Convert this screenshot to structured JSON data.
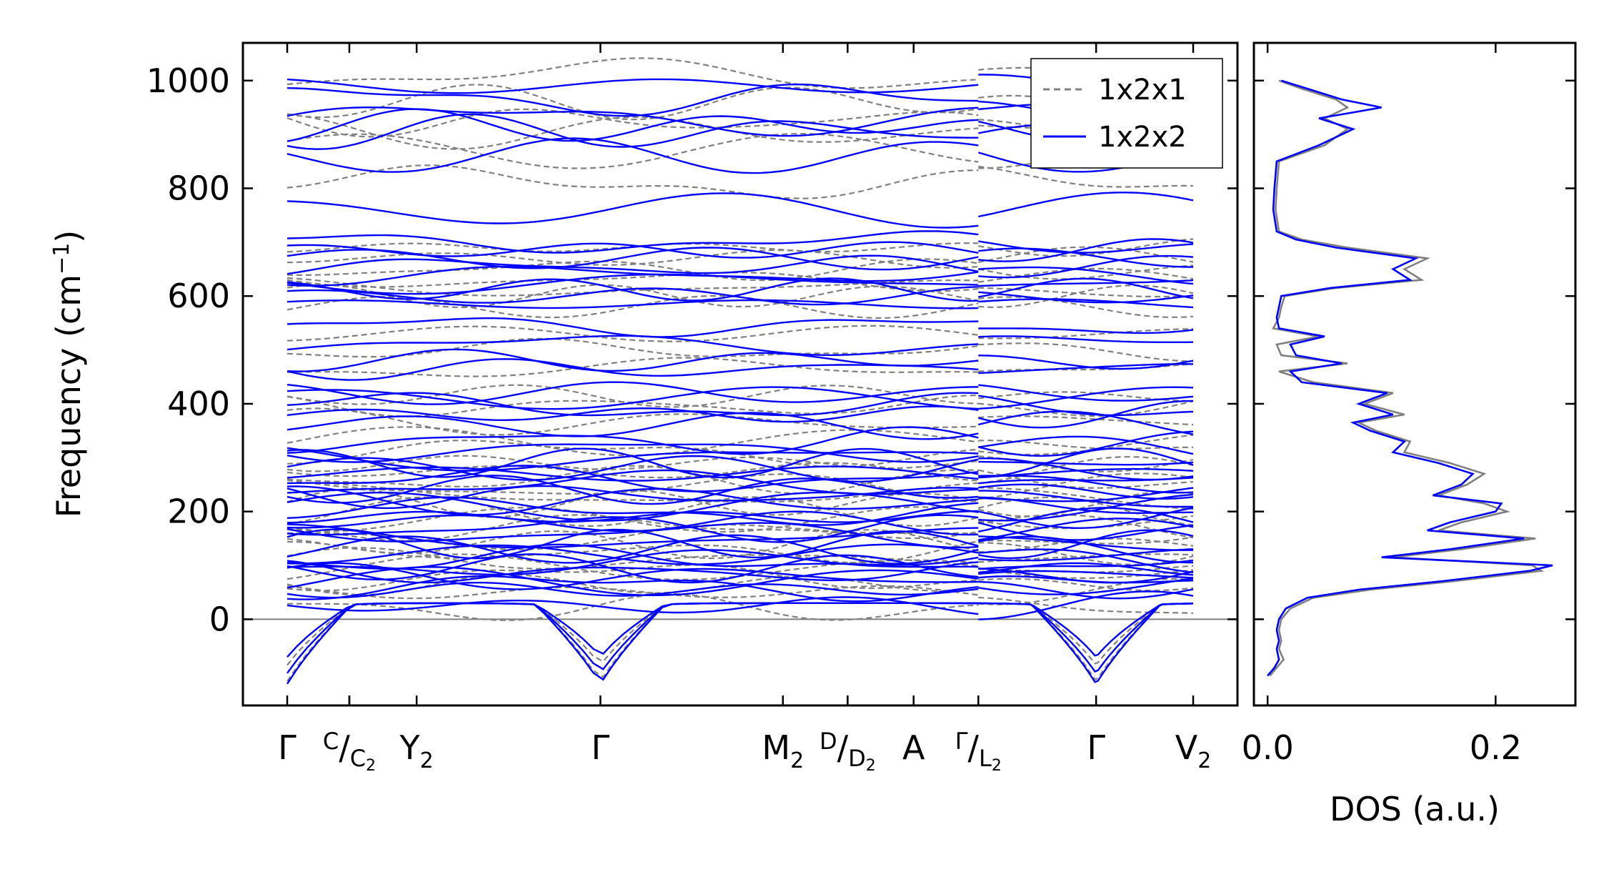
{
  "chart_data": [
    {
      "type": "line",
      "title": "",
      "xlabel": "",
      "ylabel": "Frequency (cm",
      "ylabel_sup": "−1",
      "ylabel_end": ")",
      "ylim": [
        -160,
        1070
      ],
      "yticks": [
        0,
        200,
        400,
        600,
        800,
        1000
      ],
      "grid": false,
      "legend_placement": "top-right",
      "kpath": [
        {
          "label": "Γ",
          "pos": 0.0
        },
        {
          "pos": 0.48
        },
        {
          "label": "Y",
          "sub": "2",
          "pos": 1.0
        },
        {
          "label": "Γ",
          "pos": 2.42
        },
        {
          "label": "M",
          "sub": "2",
          "pos": 3.83
        },
        {
          "pos": 4.33
        },
        {
          "label": "A",
          "pos": 4.84
        },
        {
          "label": "Γ",
          "pos": 6.25
        },
        {
          "label": "V",
          "sub": "2",
          "pos": 7.0
        }
      ],
      "kpath_split_labels": [
        {
          "sup": "C",
          "sub_main": "C",
          "sub_sub": "2",
          "pos": 0.48
        },
        {
          "sup": "D",
          "sub_main": "D",
          "sub_sub": "2",
          "pos": 4.33
        },
        {
          "sup": "Γ",
          "sub_main": "L",
          "sub_sub": "2",
          "pos": 5.34
        }
      ],
      "discontinuity_pos": 5.34,
      "zero_line": 0,
      "series": [
        {
          "name": "1x2x1",
          "color": "#808080",
          "style": "dashed",
          "band_levels": [
            -85,
            -55,
            20,
            50,
            65,
            80,
            95,
            110,
            125,
            140,
            155,
            170,
            185,
            200,
            215,
            230,
            245,
            260,
            275,
            290,
            310,
            330,
            365,
            395,
            415,
            465,
            500,
            530,
            580,
            600,
            615,
            630,
            650,
            670,
            690,
            810,
            870,
            905,
            925,
            960,
            1010
          ]
        },
        {
          "name": "1x2x2",
          "color": "#0000ff",
          "style": "solid",
          "band_levels": [
            -90,
            -70,
            -40,
            25,
            55,
            60,
            70,
            78,
            86,
            95,
            103,
            112,
            120,
            130,
            140,
            150,
            160,
            170,
            180,
            190,
            200,
            210,
            220,
            230,
            240,
            250,
            260,
            270,
            280,
            290,
            300,
            315,
            330,
            360,
            380,
            395,
            410,
            420,
            465,
            480,
            510,
            545,
            585,
            600,
            612,
            625,
            640,
            655,
            670,
            685,
            700,
            760,
            860,
            905,
            915,
            930,
            965,
            990
          ]
        }
      ]
    },
    {
      "type": "line",
      "title": "",
      "xlabel": "DOS (a.u.)",
      "ylabel": "",
      "xlim": [
        -0.012,
        0.27
      ],
      "xticks": [
        0.0,
        0.2
      ],
      "xtick_labels": [
        "0.0",
        "0.2"
      ],
      "ylim": [
        -160,
        1070
      ],
      "grid": false,
      "series": [
        {
          "name": "1x2x1",
          "color": "#808080",
          "freq": [
            -105,
            -90,
            -75,
            -55,
            -40,
            -20,
            0,
            20,
            40,
            55,
            70,
            90,
            100,
            115,
            130,
            150,
            165,
            180,
            200,
            215,
            230,
            250,
            270,
            290,
            310,
            330,
            350,
            365,
            380,
            400,
            420,
            440,
            460,
            475,
            490,
            510,
            525,
            540,
            560,
            580,
            600,
            615,
            630,
            650,
            670,
            690,
            705,
            720,
            760,
            800,
            850,
            880,
            910,
            930,
            950,
            965,
            985,
            1000
          ],
          "dos": [
            0.002,
            0.008,
            0.014,
            0.01,
            0.012,
            0.01,
            0.012,
            0.02,
            0.04,
            0.09,
            0.16,
            0.24,
            0.232,
            0.11,
            0.17,
            0.235,
            0.15,
            0.17,
            0.21,
            0.19,
            0.15,
            0.175,
            0.19,
            0.16,
            0.12,
            0.125,
            0.095,
            0.08,
            0.12,
            0.085,
            0.11,
            0.04,
            0.01,
            0.07,
            0.012,
            0.008,
            0.045,
            0.005,
            0.01,
            0.012,
            0.015,
            0.06,
            0.135,
            0.12,
            0.14,
            0.07,
            0.03,
            0.01,
            0.007,
            0.008,
            0.01,
            0.05,
            0.07,
            0.05,
            0.07,
            0.06,
            0.03,
            0.01
          ]
        },
        {
          "name": "1x2x2",
          "color": "#0000ff",
          "freq": [
            -105,
            -90,
            -75,
            -55,
            -40,
            -20,
            0,
            20,
            40,
            55,
            70,
            90,
            100,
            115,
            130,
            150,
            165,
            180,
            200,
            215,
            230,
            250,
            270,
            290,
            310,
            330,
            350,
            365,
            380,
            400,
            420,
            440,
            460,
            475,
            490,
            510,
            525,
            540,
            560,
            580,
            600,
            615,
            630,
            650,
            670,
            690,
            705,
            720,
            760,
            800,
            850,
            880,
            910,
            930,
            950,
            965,
            985,
            1000
          ],
          "dos": [
            0.0,
            0.006,
            0.01,
            0.008,
            0.01,
            0.008,
            0.01,
            0.016,
            0.035,
            0.08,
            0.15,
            0.23,
            0.25,
            0.1,
            0.16,
            0.225,
            0.14,
            0.16,
            0.2,
            0.205,
            0.145,
            0.17,
            0.18,
            0.15,
            0.11,
            0.12,
            0.09,
            0.075,
            0.11,
            0.08,
            0.105,
            0.03,
            0.02,
            0.065,
            0.025,
            0.02,
            0.05,
            0.01,
            0.008,
            0.01,
            0.012,
            0.055,
            0.125,
            0.11,
            0.13,
            0.06,
            0.025,
            0.008,
            0.005,
            0.006,
            0.008,
            0.045,
            0.075,
            0.045,
            0.1,
            0.065,
            0.035,
            0.012
          ]
        }
      ]
    }
  ],
  "legend": {
    "items": [
      {
        "label": "1x2x1",
        "color": "#808080",
        "style": "dashed"
      },
      {
        "label": "1x2x2",
        "color": "#0000ff",
        "style": "solid"
      }
    ]
  }
}
